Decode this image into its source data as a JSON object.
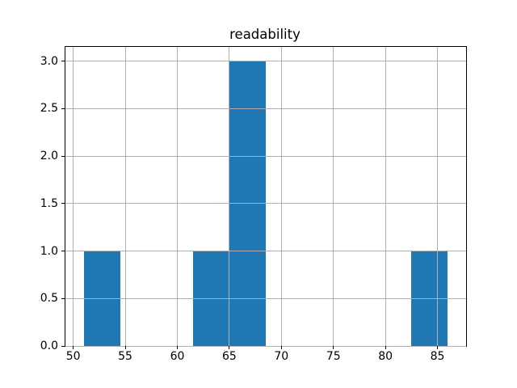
{
  "chart_data": {
    "type": "bar",
    "subtype": "histogram",
    "title": "readability",
    "xlabel": "",
    "ylabel": "",
    "bin_edges": [
      51,
      54.5,
      58,
      61.5,
      65,
      68.5,
      72,
      75.5,
      79,
      82.5,
      86
    ],
    "counts": [
      1,
      0,
      0,
      1,
      3,
      0,
      0,
      0,
      0,
      1
    ],
    "xlim": [
      49.25,
      87.75
    ],
    "ylim": [
      0,
      3.15
    ],
    "xticks": [
      {
        "v": 50,
        "label": "50"
      },
      {
        "v": 55,
        "label": "55"
      },
      {
        "v": 60,
        "label": "60"
      },
      {
        "v": 65,
        "label": "65"
      },
      {
        "v": 70,
        "label": "70"
      },
      {
        "v": 75,
        "label": "75"
      },
      {
        "v": 80,
        "label": "80"
      },
      {
        "v": 85,
        "label": "85"
      }
    ],
    "yticks": [
      {
        "v": 0.0,
        "label": "0.0"
      },
      {
        "v": 0.5,
        "label": "0.5"
      },
      {
        "v": 1.0,
        "label": "1.0"
      },
      {
        "v": 1.5,
        "label": "1.5"
      },
      {
        "v": 2.0,
        "label": "2.0"
      },
      {
        "v": 2.5,
        "label": "2.5"
      },
      {
        "v": 3.0,
        "label": "3.0"
      }
    ],
    "grid": true,
    "grid_above_bars": true,
    "legend_position": "none",
    "colors": {
      "bar": "#1f77b4",
      "grid": "#b0b0b0",
      "spine": "#000000",
      "text": "#000000",
      "background": "#ffffff"
    }
  }
}
